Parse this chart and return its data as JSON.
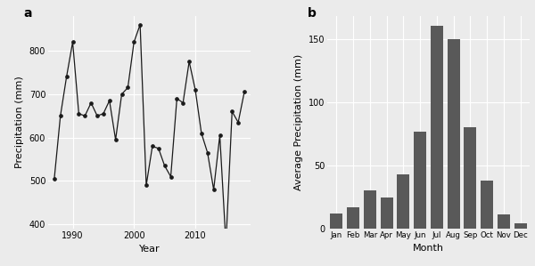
{
  "years": [
    1987,
    1988,
    1989,
    1990,
    1991,
    1992,
    1993,
    1994,
    1995,
    1996,
    1997,
    1998,
    1999,
    2000,
    2001,
    2002,
    2003,
    2004,
    2005,
    2006,
    2007,
    2008,
    2009,
    2010,
    2011,
    2012,
    2013,
    2014,
    2015,
    2016,
    2017,
    2018
  ],
  "precip": [
    505,
    650,
    740,
    820,
    655,
    650,
    680,
    650,
    655,
    685,
    595,
    700,
    715,
    820,
    860,
    490,
    580,
    575,
    535,
    510,
    690,
    680,
    775,
    710,
    610,
    565,
    480,
    605,
    355,
    660,
    635,
    705
  ],
  "months": [
    "Jan",
    "Feb",
    "Mar",
    "Apr",
    "May",
    "Jun",
    "Jul",
    "Aug",
    "Sep",
    "Oct",
    "Nov",
    "Dec"
  ],
  "avg_precip": [
    12,
    17,
    30,
    25,
    43,
    77,
    160,
    150,
    80,
    38,
    11,
    4
  ],
  "bar_color": "#595959",
  "line_color": "#1a1a1a",
  "marker_color": "#1a1a1a",
  "bg_color": "#ebebeb",
  "grid_color": "#ffffff",
  "ylabel_line": "Precipitation (mm)",
  "xlabel_line": "Year",
  "ylabel_bar": "Average Precipitation (mm)",
  "xlabel_bar": "Month",
  "label_a": "a",
  "label_b": "b",
  "ylim_line": [
    390,
    880
  ],
  "yticks_line": [
    400,
    500,
    600,
    700,
    800
  ],
  "ylim_bar": [
    0,
    168
  ],
  "yticks_bar": [
    0,
    50,
    100,
    150
  ],
  "xticks_line": [
    1990,
    2000,
    2010
  ]
}
